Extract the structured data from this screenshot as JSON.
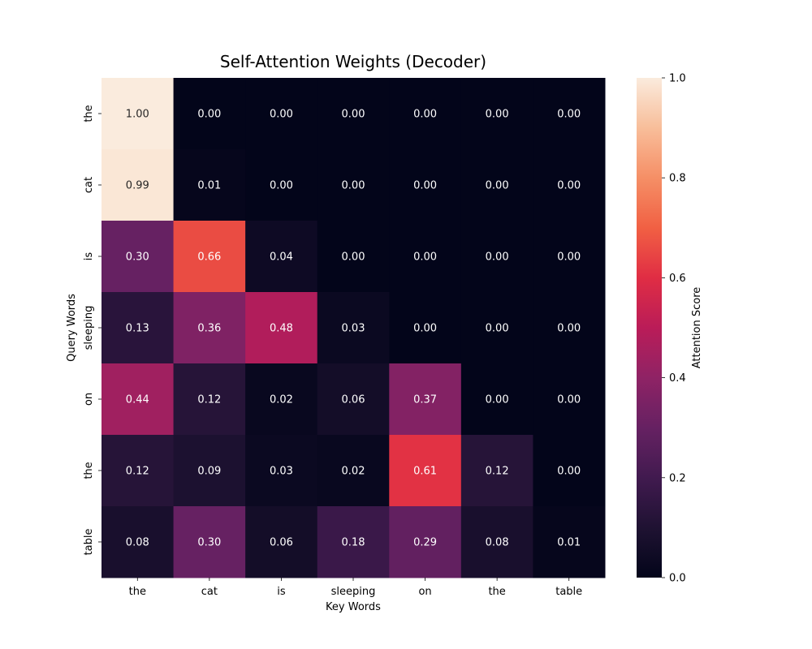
{
  "chart_data": {
    "type": "heatmap",
    "title": "Self-Attention Weights (Decoder)",
    "xlabel": "Key Words",
    "ylabel": "Query Words",
    "x_categories": [
      "the",
      "cat",
      "is",
      "sleeping",
      "on",
      "the",
      "table"
    ],
    "y_categories": [
      "the",
      "cat",
      "is",
      "sleeping",
      "on",
      "the",
      "table"
    ],
    "values": [
      [
        1.0,
        0.0,
        0.0,
        0.0,
        0.0,
        0.0,
        0.0
      ],
      [
        0.99,
        0.01,
        0.0,
        0.0,
        0.0,
        0.0,
        0.0
      ],
      [
        0.3,
        0.66,
        0.04,
        0.0,
        0.0,
        0.0,
        0.0
      ],
      [
        0.13,
        0.36,
        0.48,
        0.03,
        0.0,
        0.0,
        0.0
      ],
      [
        0.44,
        0.12,
        0.02,
        0.06,
        0.37,
        0.0,
        0.0
      ],
      [
        0.12,
        0.09,
        0.03,
        0.02,
        0.61,
        0.12,
        0.0
      ],
      [
        0.08,
        0.3,
        0.06,
        0.18,
        0.29,
        0.08,
        0.01
      ]
    ],
    "colorbar": {
      "label": "Attention Score",
      "range": [
        0,
        1
      ],
      "ticks": [
        "0.0",
        "0.2",
        "0.4",
        "0.6",
        "0.8",
        "1.0"
      ],
      "colormap": "rocket"
    },
    "annotate": true,
    "grid": false
  }
}
